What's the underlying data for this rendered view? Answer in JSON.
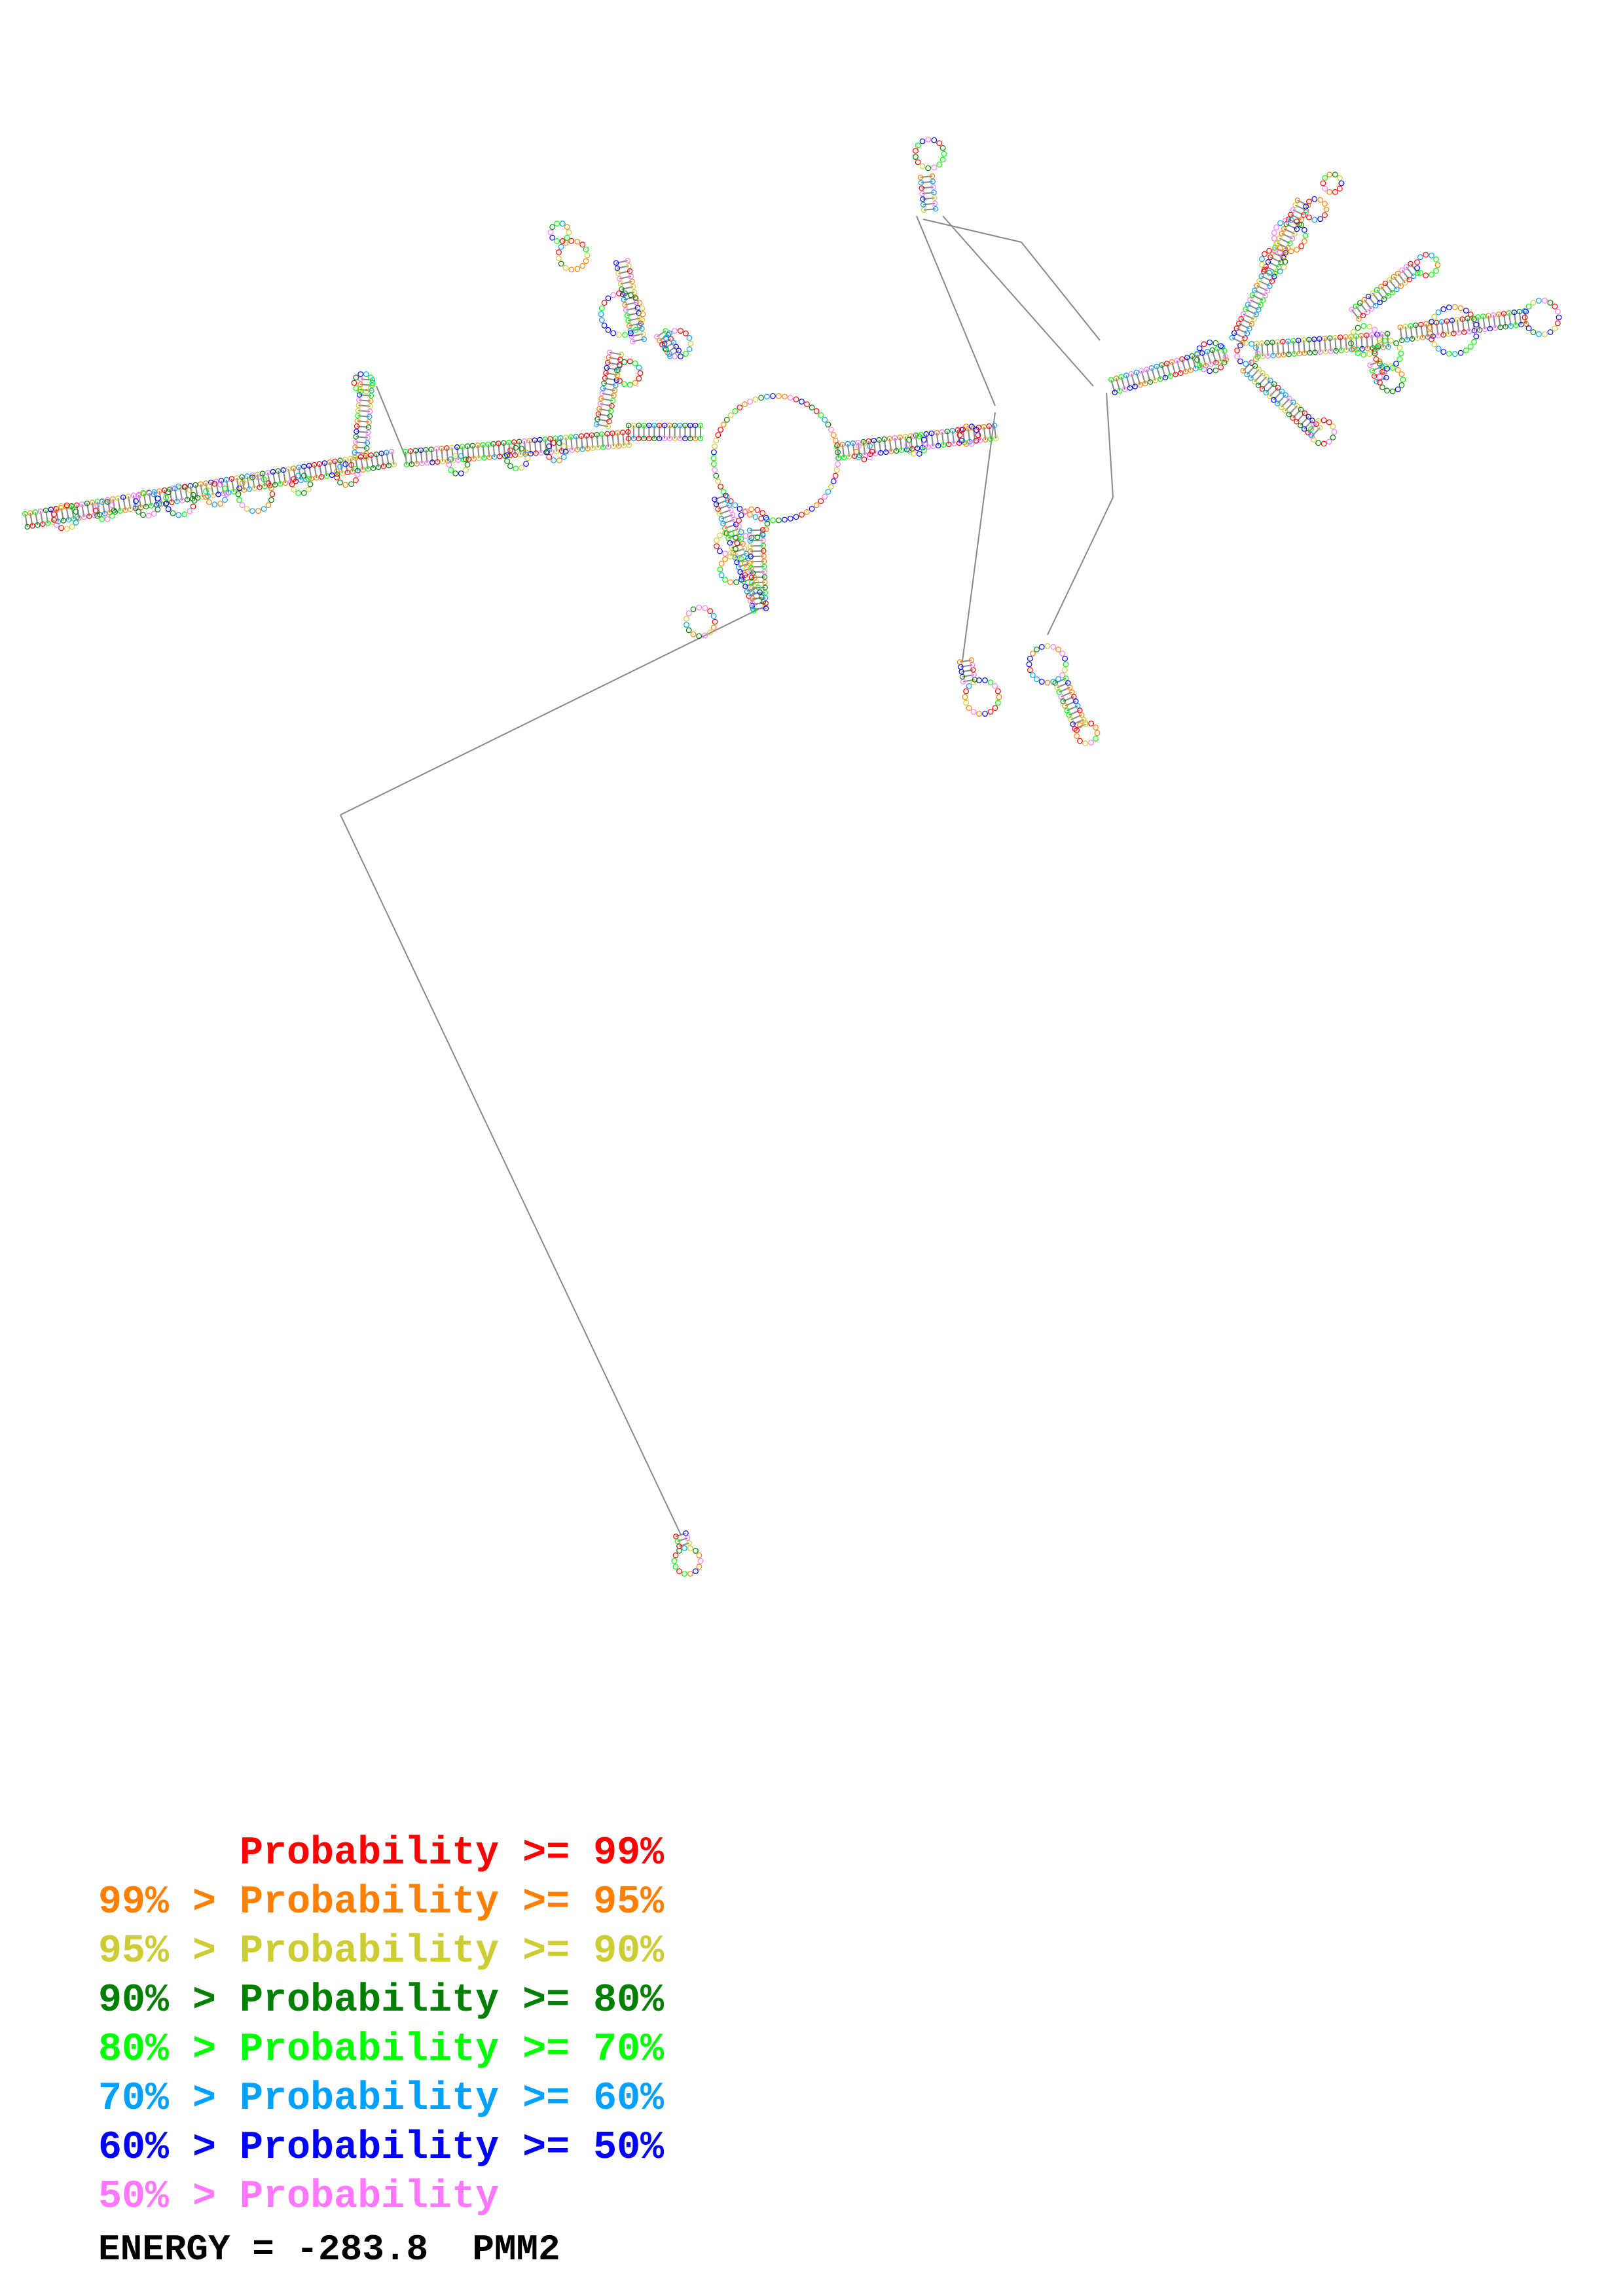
{
  "legend": {
    "rows": [
      {
        "text": "      Probability >= 99%",
        "color": "#ff0000"
      },
      {
        "text": "99% > Probability >= 95%",
        "color": "#ff7f00"
      },
      {
        "text": "95% > Probability >= 90%",
        "color": "#cccc33"
      },
      {
        "text": "90% > Probability >= 80%",
        "color": "#007f00"
      },
      {
        "text": "80% > Probability >= 70%",
        "color": "#00ff00"
      },
      {
        "text": "70% > Probability >= 60%",
        "color": "#00a0ff"
      },
      {
        "text": "60% > Probability >= 50%",
        "color": "#0000ff"
      },
      {
        "text": "50% > Probability",
        "color": "#ff77ff"
      }
    ]
  },
  "energy": {
    "label": "ENERGY = ",
    "value": "-283.8",
    "model": "PMM2"
  }
}
